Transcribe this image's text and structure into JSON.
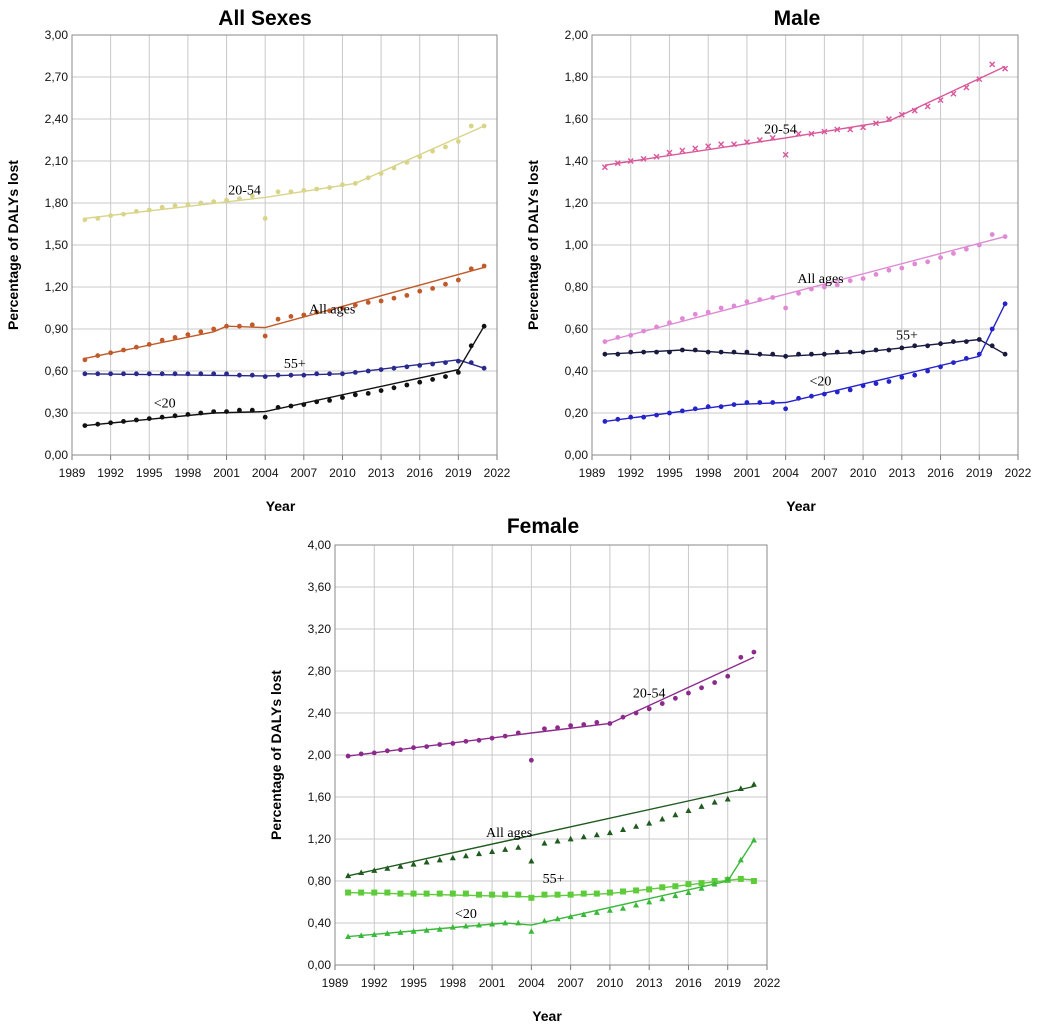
{
  "chart_data": [
    {
      "type": "line",
      "title": "All Sexes",
      "xlabel": "Year",
      "ylabel": "Percentage of DALYs lost",
      "xlim": [
        1989,
        2022
      ],
      "ylim": [
        0,
        3.0
      ],
      "x_ticks": [
        "1989",
        "1992",
        "1995",
        "1998",
        "2001",
        "2004",
        "2007",
        "2010",
        "2013",
        "2016",
        "2019",
        "2022"
      ],
      "y_ticks": [
        "0,00",
        "0,30",
        "0,60",
        "0,90",
        "1,20",
        "1,50",
        "1,80",
        "2,10",
        "2,40",
        "2,70",
        "3,00"
      ],
      "grid": true,
      "years": [
        1990,
        1991,
        1992,
        1993,
        1994,
        1995,
        1996,
        1997,
        1998,
        1999,
        2000,
        2001,
        2002,
        2003,
        2004,
        2005,
        2006,
        2007,
        2008,
        2009,
        2010,
        2011,
        2012,
        2013,
        2014,
        2015,
        2016,
        2017,
        2018,
        2019,
        2020,
        2021
      ],
      "series": [
        {
          "name": "20-54",
          "color": "#d8d58a",
          "marker": "dot",
          "values": [
            1.68,
            1.69,
            1.71,
            1.72,
            1.74,
            1.75,
            1.77,
            1.78,
            1.79,
            1.8,
            1.81,
            1.82,
            1.83,
            1.85,
            1.69,
            1.88,
            1.88,
            1.89,
            1.9,
            1.91,
            1.93,
            1.94,
            1.98,
            2.01,
            2.05,
            2.09,
            2.13,
            2.17,
            2.2,
            2.24,
            2.35,
            2.35
          ],
          "fit": [
            [
              1990,
              1.69
            ],
            [
              2004,
              1.84
            ],
            [
              2011,
              1.94
            ],
            [
              2021,
              2.35
            ]
          ]
        },
        {
          "name": "All ages",
          "color": "#c05a2a",
          "marker": "dot",
          "values": [
            0.68,
            0.71,
            0.73,
            0.75,
            0.77,
            0.79,
            0.82,
            0.84,
            0.86,
            0.88,
            0.9,
            0.92,
            0.92,
            0.93,
            0.85,
            0.97,
            0.99,
            1.0,
            1.02,
            1.03,
            1.05,
            1.07,
            1.09,
            1.1,
            1.12,
            1.14,
            1.17,
            1.19,
            1.22,
            1.25,
            1.33,
            1.35
          ],
          "fit": [
            [
              1990,
              0.69
            ],
            [
              2000,
              0.88
            ],
            [
              2001,
              0.92
            ],
            [
              2004,
              0.91
            ],
            [
              2021,
              1.34
            ]
          ]
        },
        {
          "name": "55+",
          "color": "#2a2a8c",
          "marker": "dot",
          "values": [
            0.58,
            0.58,
            0.58,
            0.58,
            0.58,
            0.58,
            0.58,
            0.58,
            0.58,
            0.58,
            0.58,
            0.58,
            0.57,
            0.57,
            0.56,
            0.57,
            0.57,
            0.57,
            0.58,
            0.58,
            0.58,
            0.59,
            0.6,
            0.61,
            0.62,
            0.63,
            0.64,
            0.65,
            0.66,
            0.67,
            0.66,
            0.62
          ],
          "fit": [
            [
              1990,
              0.58
            ],
            [
              2004,
              0.565
            ],
            [
              2010,
              0.58
            ],
            [
              2019,
              0.68
            ],
            [
              2021,
              0.62
            ]
          ]
        },
        {
          "name": "<20",
          "color": "#111111",
          "marker": "dot",
          "values": [
            0.21,
            0.22,
            0.23,
            0.24,
            0.25,
            0.26,
            0.27,
            0.28,
            0.29,
            0.3,
            0.31,
            0.31,
            0.32,
            0.32,
            0.27,
            0.34,
            0.35,
            0.36,
            0.38,
            0.39,
            0.41,
            0.43,
            0.44,
            0.46,
            0.48,
            0.5,
            0.52,
            0.54,
            0.56,
            0.59,
            0.78,
            0.92
          ],
          "fit": [
            [
              1990,
              0.21
            ],
            [
              2000,
              0.3
            ],
            [
              2004,
              0.31
            ],
            [
              2019,
              0.61
            ],
            [
              2021,
              0.92
            ]
          ]
        }
      ],
      "annotations": [
        {
          "text": "20-54",
          "x": 2002.4,
          "y": 1.86
        },
        {
          "text": "All ages",
          "x": 2009.2,
          "y": 1.01
        },
        {
          "text": "55+",
          "x": 2006.3,
          "y": 0.62
        },
        {
          "text": "<20",
          "x": 1996.2,
          "y": 0.34
        }
      ]
    },
    {
      "type": "line",
      "title": "Male",
      "xlabel": "Year",
      "ylabel": "Percentage of DALYs lost",
      "xlim": [
        1989,
        2022
      ],
      "ylim": [
        0,
        2.0
      ],
      "x_ticks": [
        "1989",
        "1992",
        "1995",
        "1998",
        "2001",
        "2004",
        "2007",
        "2010",
        "2013",
        "2016",
        "2019",
        "2022"
      ],
      "y_ticks": [
        "0,00",
        "0,20",
        "0,40",
        "0,60",
        "0,80",
        "1,00",
        "1,20",
        "1,40",
        "1,60",
        "1,80",
        "2,00"
      ],
      "grid": true,
      "years": [
        1990,
        1991,
        1992,
        1993,
        1994,
        1995,
        1996,
        1997,
        1998,
        1999,
        2000,
        2001,
        2002,
        2003,
        2004,
        2005,
        2006,
        2007,
        2008,
        2009,
        2010,
        2011,
        2012,
        2013,
        2014,
        2015,
        2016,
        2017,
        2018,
        2019,
        2020,
        2021
      ],
      "series": [
        {
          "name": "20-54",
          "color": "#d9579a",
          "marker": "x",
          "values": [
            1.37,
            1.39,
            1.4,
            1.41,
            1.42,
            1.44,
            1.45,
            1.46,
            1.47,
            1.48,
            1.48,
            1.49,
            1.5,
            1.51,
            1.43,
            1.53,
            1.53,
            1.54,
            1.55,
            1.55,
            1.56,
            1.58,
            1.6,
            1.62,
            1.64,
            1.66,
            1.69,
            1.72,
            1.75,
            1.79,
            1.86,
            1.84
          ],
          "fit": [
            [
              1990,
              1.38
            ],
            [
              2004,
              1.51
            ],
            [
              2012,
              1.59
            ],
            [
              2021,
              1.85
            ]
          ]
        },
        {
          "name": "All ages",
          "color": "#e08ad6",
          "marker": "dot",
          "values": [
            0.54,
            0.56,
            0.57,
            0.59,
            0.61,
            0.63,
            0.65,
            0.67,
            0.68,
            0.7,
            0.71,
            0.73,
            0.74,
            0.75,
            0.7,
            0.77,
            0.79,
            0.8,
            0.81,
            0.83,
            0.84,
            0.86,
            0.88,
            0.89,
            0.91,
            0.92,
            0.94,
            0.96,
            0.98,
            1.0,
            1.05,
            1.04
          ],
          "fit": [
            [
              1990,
              0.54
            ],
            [
              2021,
              1.04
            ]
          ]
        },
        {
          "name": "55+",
          "color": "#1a1a40",
          "marker": "dot",
          "values": [
            0.48,
            0.48,
            0.49,
            0.49,
            0.49,
            0.49,
            0.5,
            0.5,
            0.49,
            0.49,
            0.49,
            0.49,
            0.48,
            0.48,
            0.47,
            0.48,
            0.48,
            0.48,
            0.49,
            0.49,
            0.49,
            0.5,
            0.5,
            0.51,
            0.52,
            0.52,
            0.53,
            0.54,
            0.54,
            0.55,
            0.52,
            0.48
          ],
          "fit": [
            [
              1990,
              0.48
            ],
            [
              1996,
              0.5
            ],
            [
              2004,
              0.47
            ],
            [
              2010,
              0.49
            ],
            [
              2019,
              0.55
            ],
            [
              2021,
              0.48
            ]
          ]
        },
        {
          "name": "<20",
          "color": "#2424c8",
          "marker": "dot",
          "values": [
            0.16,
            0.17,
            0.18,
            0.18,
            0.19,
            0.2,
            0.21,
            0.22,
            0.23,
            0.23,
            0.24,
            0.25,
            0.25,
            0.25,
            0.22,
            0.27,
            0.28,
            0.29,
            0.3,
            0.31,
            0.33,
            0.34,
            0.35,
            0.37,
            0.38,
            0.4,
            0.42,
            0.44,
            0.46,
            0.48,
            0.6,
            0.72
          ],
          "fit": [
            [
              1990,
              0.16
            ],
            [
              2000,
              0.24
            ],
            [
              2004,
              0.25
            ],
            [
              2019,
              0.47
            ],
            [
              2021,
              0.72
            ]
          ]
        }
      ],
      "annotations": [
        {
          "text": "20-54",
          "x": 2003.6,
          "y": 1.53
        },
        {
          "text": "All ages",
          "x": 2006.7,
          "y": 0.82
        },
        {
          "text": "55+",
          "x": 2013.4,
          "y": 0.55
        },
        {
          "text": "<20",
          "x": 2006.7,
          "y": 0.33
        }
      ]
    },
    {
      "type": "line",
      "title": "Female",
      "xlabel": "Year",
      "ylabel": "Percentage of DALYs lost",
      "xlim": [
        1989,
        2022
      ],
      "ylim": [
        0,
        4.0
      ],
      "x_ticks": [
        "1989",
        "1992",
        "1995",
        "1998",
        "2001",
        "2004",
        "2007",
        "2010",
        "2013",
        "2016",
        "2019",
        "2022"
      ],
      "y_ticks": [
        "0,00",
        "0,40",
        "0,80",
        "1,20",
        "1,60",
        "2,00",
        "2,40",
        "2,80",
        "3,20",
        "3,60",
        "4,00"
      ],
      "grid": true,
      "years": [
        1990,
        1991,
        1992,
        1993,
        1994,
        1995,
        1996,
        1997,
        1998,
        1999,
        2000,
        2001,
        2002,
        2003,
        2004,
        2005,
        2006,
        2007,
        2008,
        2009,
        2010,
        2011,
        2012,
        2013,
        2014,
        2015,
        2016,
        2017,
        2018,
        2019,
        2020,
        2021
      ],
      "series": [
        {
          "name": "20-54",
          "color": "#8c2a8c",
          "marker": "dot",
          "values": [
            1.99,
            2.01,
            2.02,
            2.04,
            2.05,
            2.07,
            2.08,
            2.1,
            2.11,
            2.13,
            2.14,
            2.16,
            2.18,
            2.21,
            1.95,
            2.25,
            2.26,
            2.28,
            2.29,
            2.31,
            2.3,
            2.36,
            2.4,
            2.44,
            2.49,
            2.54,
            2.59,
            2.64,
            2.69,
            2.75,
            2.93,
            2.98
          ],
          "fit": [
            [
              1990,
              1.99
            ],
            [
              2004,
              2.21
            ],
            [
              2010,
              2.3
            ],
            [
              2021,
              2.93
            ]
          ]
        },
        {
          "name": "All ages",
          "color": "#1f5a1f",
          "marker": "triangle",
          "values": [
            0.85,
            0.88,
            0.9,
            0.92,
            0.94,
            0.96,
            0.98,
            1.0,
            1.02,
            1.04,
            1.06,
            1.08,
            1.1,
            1.12,
            0.99,
            1.16,
            1.18,
            1.2,
            1.22,
            1.24,
            1.26,
            1.29,
            1.32,
            1.35,
            1.39,
            1.43,
            1.47,
            1.51,
            1.55,
            1.58,
            1.68,
            1.72
          ],
          "fit": [
            [
              1990,
              0.85
            ],
            [
              2021,
              1.7
            ]
          ]
        },
        {
          "name": "55+",
          "color": "#5ecb3a",
          "marker": "square",
          "values": [
            0.69,
            0.69,
            0.69,
            0.69,
            0.68,
            0.68,
            0.68,
            0.68,
            0.68,
            0.68,
            0.67,
            0.67,
            0.67,
            0.67,
            0.64,
            0.67,
            0.67,
            0.67,
            0.68,
            0.68,
            0.69,
            0.7,
            0.71,
            0.72,
            0.74,
            0.75,
            0.77,
            0.78,
            0.8,
            0.81,
            0.82,
            0.8
          ],
          "fit": [
            [
              1990,
              0.69
            ],
            [
              2004,
              0.65
            ],
            [
              2010,
              0.68
            ],
            [
              2020,
              0.82
            ],
            [
              2021,
              0.81
            ]
          ]
        },
        {
          "name": "<20",
          "color": "#3ab83a",
          "marker": "triangle",
          "values": [
            0.27,
            0.28,
            0.29,
            0.3,
            0.31,
            0.32,
            0.33,
            0.34,
            0.36,
            0.37,
            0.38,
            0.39,
            0.4,
            0.4,
            0.32,
            0.42,
            0.44,
            0.46,
            0.48,
            0.5,
            0.52,
            0.54,
            0.57,
            0.6,
            0.63,
            0.66,
            0.69,
            0.73,
            0.77,
            0.82,
            1.0,
            1.19
          ],
          "fit": [
            [
              1990,
              0.27
            ],
            [
              2002,
              0.4
            ],
            [
              2004,
              0.38
            ],
            [
              2019,
              0.8
            ],
            [
              2021,
              1.19
            ]
          ]
        }
      ],
      "annotations": [
        {
          "text": "20-54",
          "x": 2013.0,
          "y": 2.55
        },
        {
          "text": "All ages",
          "x": 2002.3,
          "y": 1.22
        },
        {
          "text": "55+",
          "x": 2005.7,
          "y": 0.78
        },
        {
          "text": "<20",
          "x": 1999.0,
          "y": 0.45
        }
      ]
    }
  ]
}
